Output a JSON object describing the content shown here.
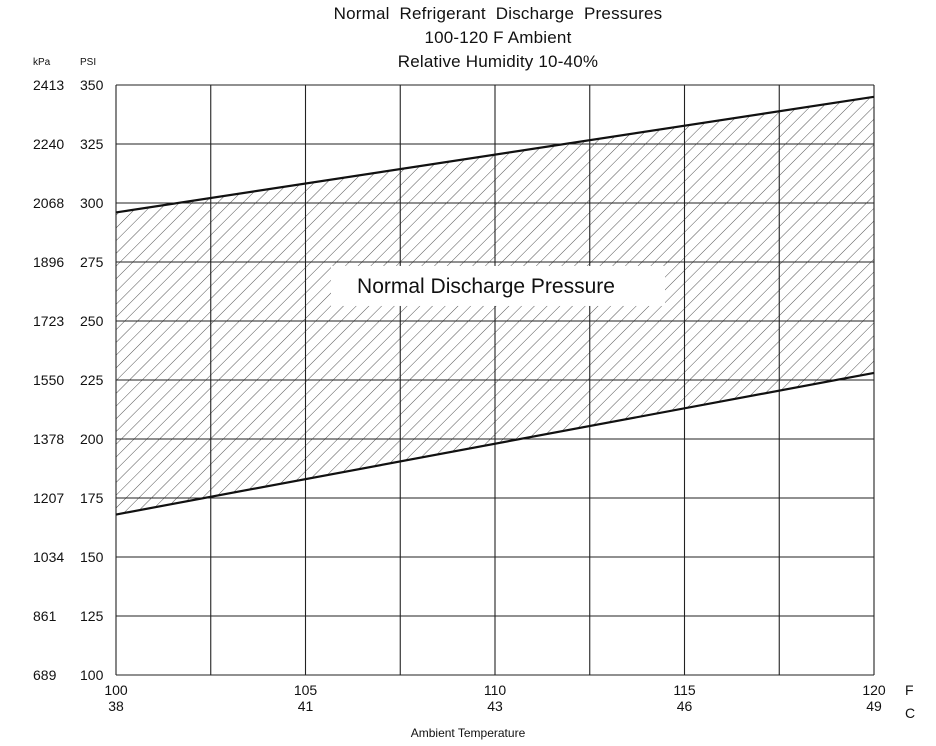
{
  "chart_data": {
    "type": "area",
    "title_lines": [
      "Normal  Refrigerant  Discharge  Pressures",
      "100-120 F Ambient",
      "Relative Humidity 10-40%"
    ],
    "xlabel": "Ambient Temperature",
    "x_unit_primary": "F",
    "x_unit_secondary": "C",
    "y_unit_primary": "PSI",
    "y_unit_secondary": "kPa",
    "xlim": [
      100,
      120
    ],
    "ylim": [
      100,
      350
    ],
    "x_ticks": [
      {
        "f": "100",
        "c": "38",
        "value": 100
      },
      {
        "f": "105",
        "c": "41",
        "value": 105
      },
      {
        "f": "110",
        "c": "43",
        "value": 110
      },
      {
        "f": "115",
        "c": "46",
        "value": 115
      },
      {
        "f": "120",
        "c": "49",
        "value": 120
      }
    ],
    "x_gridlines": [
      100,
      102.5,
      105,
      107.5,
      110,
      112.5,
      115,
      117.5,
      120
    ],
    "y_ticks": [
      {
        "psi": "350",
        "kpa": "2413",
        "value": 350
      },
      {
        "psi": "325",
        "kpa": "2240",
        "value": 325
      },
      {
        "psi": "300",
        "kpa": "2068",
        "value": 300
      },
      {
        "psi": "275",
        "kpa": "1896",
        "value": 275
      },
      {
        "psi": "250",
        "kpa": "1723",
        "value": 250
      },
      {
        "psi": "225",
        "kpa": "1550",
        "value": 225
      },
      {
        "psi": "200",
        "kpa": "1378",
        "value": 200
      },
      {
        "psi": "175",
        "kpa": "1207",
        "value": 175
      },
      {
        "psi": "150",
        "kpa": "1034",
        "value": 150
      },
      {
        "psi": "125",
        "kpa": "861",
        "value": 125
      },
      {
        "psi": "100",
        "kpa": "689",
        "value": 100
      }
    ],
    "series": [
      {
        "x": [
          100,
          120
        ],
        "y": [
          296,
          345
        ]
      },
      {
        "x": [
          100,
          120
        ],
        "y": [
          168,
          228
        ]
      }
    ],
    "band_label": "Normal Discharge Pressure",
    "grid": true,
    "colors": {
      "line": "#111111",
      "grid": "#222222",
      "hatch": "#555555",
      "background": "#ffffff"
    }
  }
}
